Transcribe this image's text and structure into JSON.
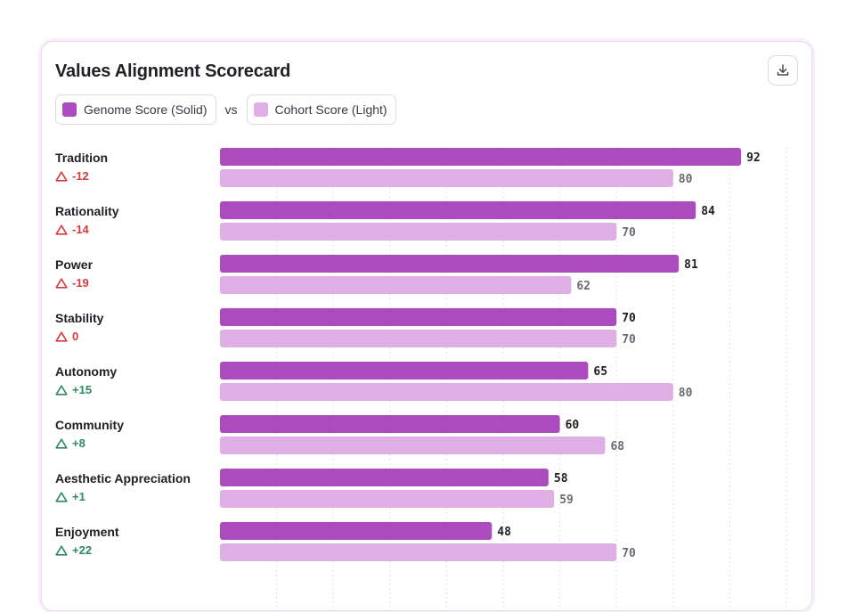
{
  "card": {
    "title": "Values Alignment Scorecard",
    "download_icon": "download-icon"
  },
  "legend": {
    "primary_label": "Genome Score (Solid)",
    "separator": "vs",
    "secondary_label": "Cohort Score (Light)"
  },
  "colors": {
    "primary": "#ab4bbd",
    "secondary": "#dfaee4",
    "negative": "#d63a3a",
    "positive": "#2f8a62"
  },
  "chart_data": {
    "type": "bar",
    "orientation": "horizontal",
    "xlim": [
      0,
      100
    ],
    "grid": true,
    "legend_position": "top-left",
    "categories": [
      "Tradition",
      "Rationality",
      "Power",
      "Stability",
      "Autonomy",
      "Community",
      "Aesthetic Appreciation",
      "Enjoyment"
    ],
    "deltas": [
      "-12",
      "-14",
      "-19",
      "0",
      "+15",
      "+8",
      "+1",
      "+22"
    ],
    "series": [
      {
        "name": "Genome Score (Solid)",
        "values": [
          92,
          84,
          81,
          70,
          65,
          60,
          58,
          48
        ]
      },
      {
        "name": "Cohort Score (Light)",
        "values": [
          80,
          70,
          62,
          70,
          80,
          68,
          59,
          70
        ]
      }
    ]
  }
}
